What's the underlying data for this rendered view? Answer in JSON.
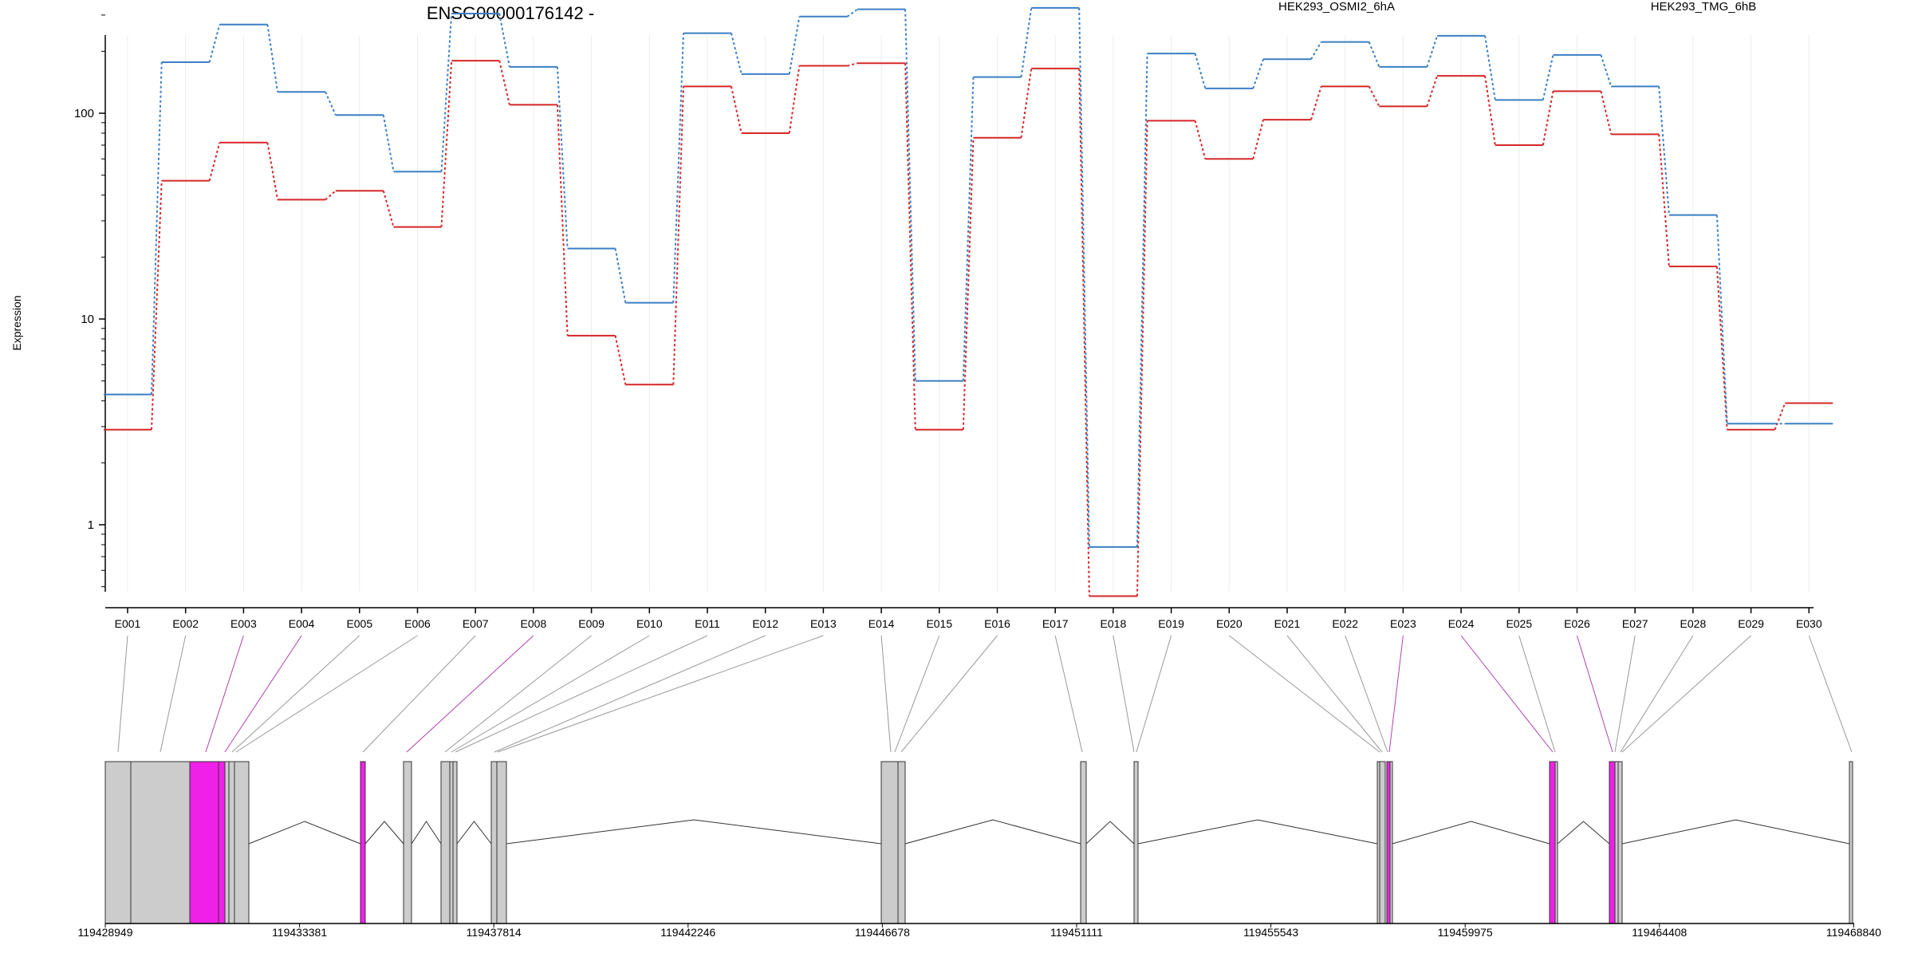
{
  "title": "ENSG00000176142 -",
  "ylabel": "Expression",
  "colors": {
    "series_a": "#d62728",
    "series_b": "#3b7fc4",
    "exon_box": "#cccccc",
    "exon_highlight": "#f020e8",
    "connector": "#999999",
    "connector_highlight": "#b040b0"
  },
  "chart_data": {
    "type": "line",
    "title": "ENSG00000176142 -",
    "ylabel": "Expression",
    "yscale": "log",
    "ylim": [
      0.45,
      400
    ],
    "yticks": [
      1,
      10,
      100
    ],
    "ytick_labels": [
      "1",
      "10",
      "100"
    ],
    "grid": "vertical",
    "legend_placement": "top-right",
    "categories": [
      "E001",
      "E002",
      "E003",
      "E004",
      "E005",
      "E006",
      "E007",
      "E008",
      "E009",
      "E010",
      "E011",
      "E012",
      "E013",
      "E014",
      "E015",
      "E016",
      "E017",
      "E018",
      "E019",
      "E020",
      "E021",
      "E022",
      "E023",
      "E024",
      "E025",
      "E026",
      "E027",
      "E028",
      "E029",
      "E030"
    ],
    "series": [
      {
        "name": "HEK293_OSMI2_6hA",
        "color": "#d62728",
        "values": [
          2.9,
          47,
          72,
          38,
          42,
          28,
          180,
          110,
          8.3,
          4.8,
          135,
          80,
          170,
          175,
          2.9,
          76,
          165,
          0.45,
          92,
          60,
          93,
          135,
          108,
          152,
          70,
          128,
          79,
          18,
          2.9,
          3.9
        ]
      },
      {
        "name": "HEK293_TMG_6hB",
        "color": "#3b7fc4",
        "values": [
          4.3,
          177,
          270,
          127,
          98,
          52,
          305,
          168,
          22,
          12,
          245,
          155,
          295,
          320,
          5.0,
          150,
          325,
          0.78,
          195,
          132,
          183,
          222,
          168,
          238,
          116,
          192,
          135,
          32,
          3.1,
          3.1
        ]
      }
    ]
  },
  "gene_model": {
    "coordinate_labels": [
      "119428949",
      "119433381",
      "119437814",
      "119442246",
      "119446678",
      "119451111",
      "119455543",
      "119459975",
      "119464408",
      "119468840"
    ],
    "highlighted_exons": [
      "E003",
      "E004",
      "E008",
      "E023",
      "E024",
      "E026"
    ]
  }
}
